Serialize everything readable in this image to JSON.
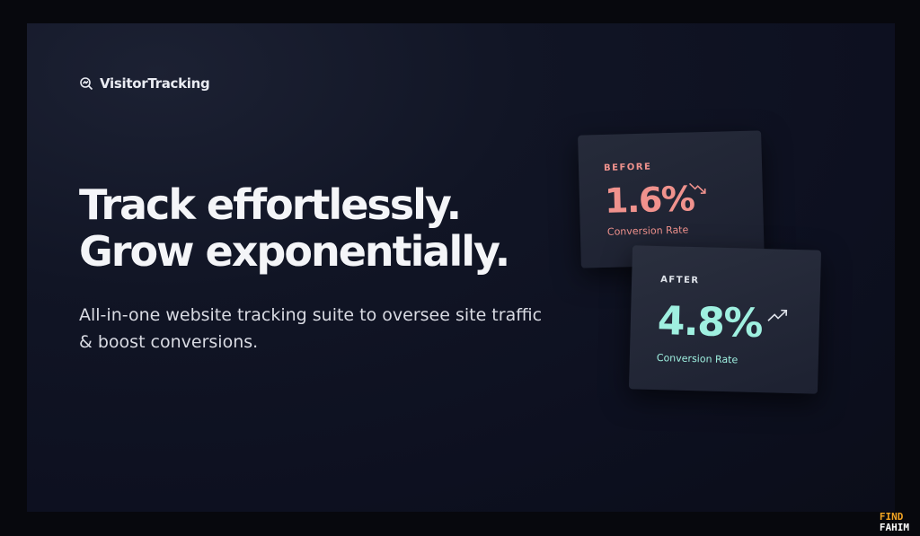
{
  "brand": {
    "name": "VisitorTracking",
    "icon": "search-analytics-icon"
  },
  "hero": {
    "line1": "Track effortlessly.",
    "line2": "Grow exponentially.",
    "subtitle": "All-in-one website tracking suite to oversee site traffic & boost conversions."
  },
  "cards": [
    {
      "label": "BEFORE",
      "value": "1.6%",
      "caption": "Conversion Rate",
      "trend_icon": "trend-down-icon",
      "color": "#f0928d"
    },
    {
      "label": "AFTER",
      "value": "4.8%",
      "caption": "Conversion Rate",
      "trend_icon": "trend-up-icon",
      "color": "#9ff0e0"
    }
  ],
  "watermark": {
    "line1": "FIND",
    "line2": "FAHIM"
  }
}
